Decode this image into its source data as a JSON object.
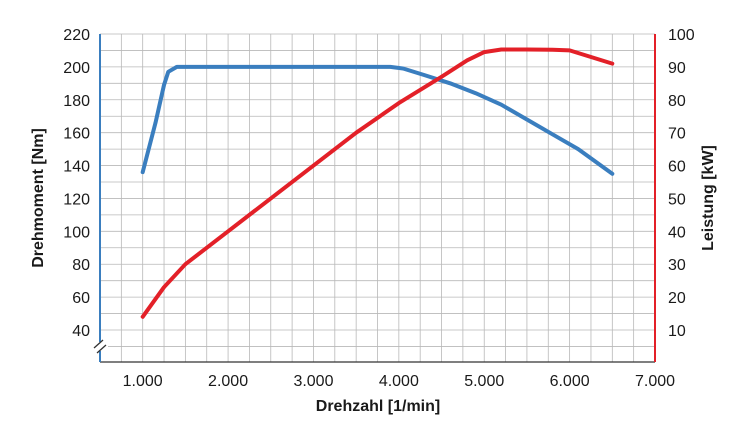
{
  "chart_data": {
    "type": "line",
    "xlabel": "Drehzahl [1/min]",
    "x_ticks": [
      "1.000",
      "2.000",
      "3.000",
      "4.000",
      "5.000",
      "6.000",
      "7.000"
    ],
    "xlim": [
      500,
      7000
    ],
    "y_left": {
      "label": "Drehmoment [Nm]",
      "ticks": [
        "40",
        "60",
        "80",
        "100",
        "120",
        "140",
        "160",
        "180",
        "200",
        "220"
      ],
      "ylim": [
        40,
        220
      ],
      "axis_break": true,
      "color": "#3a7ebf"
    },
    "y_right": {
      "label": "Leistung [kW]",
      "ticks": [
        "10",
        "20",
        "30",
        "40",
        "50",
        "60",
        "70",
        "80",
        "90",
        "100"
      ],
      "ylim": [
        10,
        100
      ],
      "color": "#e32028"
    },
    "grid": true,
    "series": [
      {
        "axis": "left",
        "color": "#3a7ebf",
        "x": [
          1000,
          1150,
          1250,
          1300,
          1400,
          2000,
          3000,
          3900,
          4050,
          4300,
          4600,
          4900,
          5200,
          5500,
          5800,
          6100,
          6500
        ],
        "y": [
          136,
          166,
          189,
          197,
          200,
          200,
          200,
          200,
          199,
          195,
          190,
          184,
          177,
          168,
          159,
          150,
          135
        ]
      },
      {
        "axis": "right",
        "color": "#e32028",
        "x": [
          1000,
          1250,
          1500,
          2000,
          2500,
          3000,
          3500,
          4000,
          4500,
          4800,
          5000,
          5200,
          5500,
          5800,
          6000,
          6250,
          6500
        ],
        "y": [
          14,
          23,
          30,
          40,
          50,
          60,
          70,
          79,
          87,
          92,
          94.5,
          95.3,
          95.3,
          95.2,
          95,
          93,
          91
        ]
      }
    ]
  }
}
